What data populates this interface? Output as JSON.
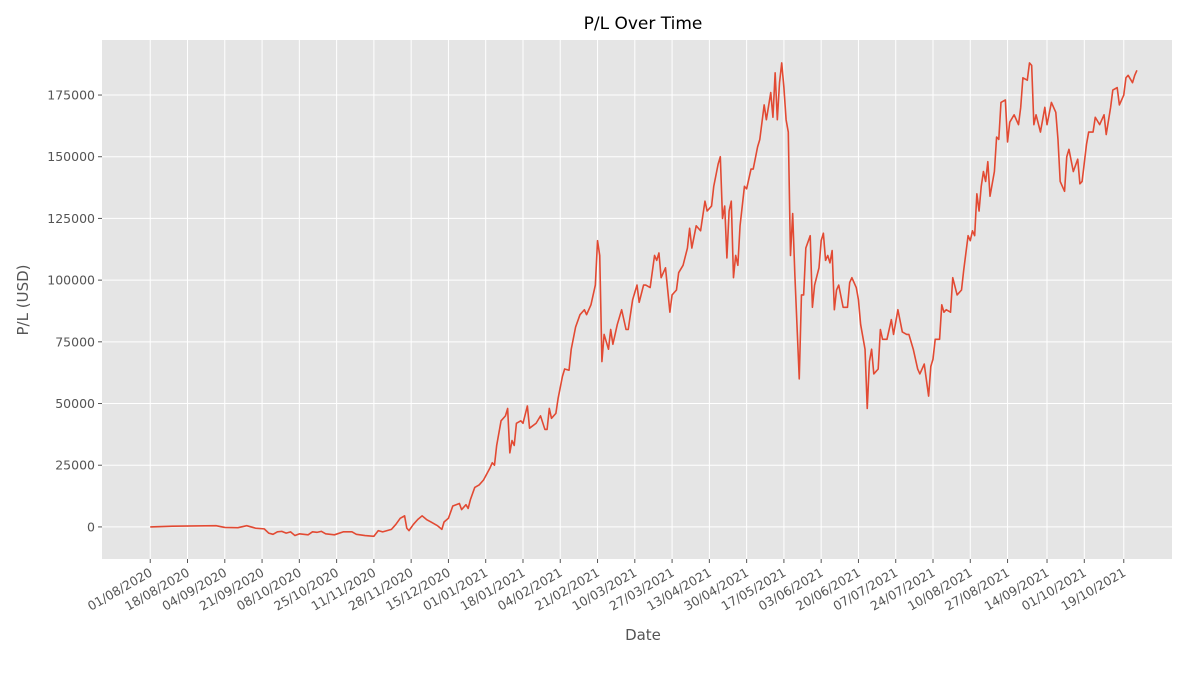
{
  "chart_data": {
    "type": "line",
    "title": "P/L Over Time",
    "x_label": "Date",
    "y_label": "P/L (USD)",
    "color": "#e24a33",
    "grid": true,
    "xlim": [
      "2020-07-10",
      "2021-11-10"
    ],
    "ylim": [
      -13000,
      197300
    ],
    "yticks": [
      0,
      25000,
      50000,
      75000,
      100000,
      125000,
      150000,
      175000
    ],
    "xticks": [
      {
        "value": "2020-08-01",
        "label": "01/08/2020"
      },
      {
        "value": "2020-08-18",
        "label": "18/08/2020"
      },
      {
        "value": "2020-09-04",
        "label": "04/09/2020"
      },
      {
        "value": "2020-09-21",
        "label": "21/09/2020"
      },
      {
        "value": "2020-10-08",
        "label": "08/10/2020"
      },
      {
        "value": "2020-10-25",
        "label": "25/10/2020"
      },
      {
        "value": "2020-11-11",
        "label": "11/11/2020"
      },
      {
        "value": "2020-11-28",
        "label": "28/11/2020"
      },
      {
        "value": "2020-12-15",
        "label": "15/12/2020"
      },
      {
        "value": "2021-01-01",
        "label": "01/01/2021"
      },
      {
        "value": "2021-01-18",
        "label": "18/01/2021"
      },
      {
        "value": "2021-02-04",
        "label": "04/02/2021"
      },
      {
        "value": "2021-02-21",
        "label": "21/02/2021"
      },
      {
        "value": "2021-03-10",
        "label": "10/03/2021"
      },
      {
        "value": "2021-03-27",
        "label": "27/03/2021"
      },
      {
        "value": "2021-04-13",
        "label": "13/04/2021"
      },
      {
        "value": "2021-04-30",
        "label": "30/04/2021"
      },
      {
        "value": "2021-05-17",
        "label": "17/05/2021"
      },
      {
        "value": "2021-06-03",
        "label": "03/06/2021"
      },
      {
        "value": "2021-06-20",
        "label": "20/06/2021"
      },
      {
        "value": "2021-07-07",
        "label": "07/07/2021"
      },
      {
        "value": "2021-07-24",
        "label": "24/07/2021"
      },
      {
        "value": "2021-08-10",
        "label": "10/08/2021"
      },
      {
        "value": "2021-08-27",
        "label": "27/08/2021"
      },
      {
        "value": "2021-09-14",
        "label": "14/09/2021"
      },
      {
        "value": "2021-10-01",
        "label": "01/10/2021"
      },
      {
        "value": "2021-10-19",
        "label": "19/10/2021"
      }
    ],
    "x": [
      "2020-08-01",
      "2020-08-11",
      "2020-08-21",
      "2020-08-31",
      "2020-09-04",
      "2020-09-10",
      "2020-09-14",
      "2020-09-18",
      "2020-09-22",
      "2020-09-24",
      "2020-09-26",
      "2020-09-28",
      "2020-09-30",
      "2020-10-02",
      "2020-10-04",
      "2020-10-06",
      "2020-10-08",
      "2020-10-10",
      "2020-10-12",
      "2020-10-14",
      "2020-10-16",
      "2020-10-18",
      "2020-10-20",
      "2020-10-24",
      "2020-10-28",
      "2020-11-01",
      "2020-11-03",
      "2020-11-07",
      "2020-11-11",
      "2020-11-13",
      "2020-11-15",
      "2020-11-17",
      "2020-11-19",
      "2020-11-21",
      "2020-11-23",
      "2020-11-25",
      "2020-11-26",
      "2020-11-27",
      "2020-11-29",
      "2020-12-01",
      "2020-12-03",
      "2020-12-05",
      "2020-12-07",
      "2020-12-10",
      "2020-12-12",
      "2020-12-13",
      "2020-12-15",
      "2020-12-17",
      "2020-12-20",
      "2020-12-21",
      "2020-12-23",
      "2020-12-24",
      "2020-12-25",
      "2020-12-27",
      "2020-12-29",
      "2020-12-31",
      "2021-01-03",
      "2021-01-04",
      "2021-01-05",
      "2021-01-06",
      "2021-01-08",
      "2021-01-10",
      "2021-01-11",
      "2021-01-12",
      "2021-01-13",
      "2021-01-14",
      "2021-01-15",
      "2021-01-17",
      "2021-01-18",
      "2021-01-20",
      "2021-01-21",
      "2021-01-24",
      "2021-01-26",
      "2021-01-28",
      "2021-01-29",
      "2021-01-30",
      "2021-01-31",
      "2021-02-02",
      "2021-02-03",
      "2021-02-05",
      "2021-02-06",
      "2021-02-08",
      "2021-02-09",
      "2021-02-11",
      "2021-02-13",
      "2021-02-15",
      "2021-02-16",
      "2021-02-18",
      "2021-02-20",
      "2021-02-21",
      "2021-02-22",
      "2021-02-23",
      "2021-02-24",
      "2021-02-26",
      "2021-02-27",
      "2021-02-28",
      "2021-03-02",
      "2021-03-04",
      "2021-03-06",
      "2021-03-07",
      "2021-03-09",
      "2021-03-11",
      "2021-03-12",
      "2021-03-14",
      "2021-03-15",
      "2021-03-17",
      "2021-03-19",
      "2021-03-20",
      "2021-03-21",
      "2021-03-22",
      "2021-03-24",
      "2021-03-25",
      "2021-03-26",
      "2021-03-27",
      "2021-03-29",
      "2021-03-30",
      "2021-04-01",
      "2021-04-03",
      "2021-04-04",
      "2021-04-05",
      "2021-04-07",
      "2021-04-09",
      "2021-04-11",
      "2021-04-12",
      "2021-04-14",
      "2021-04-15",
      "2021-04-17",
      "2021-04-18",
      "2021-04-19",
      "2021-04-20",
      "2021-04-21",
      "2021-04-22",
      "2021-04-23",
      "2021-04-24",
      "2021-04-25",
      "2021-04-26",
      "2021-04-27",
      "2021-04-29",
      "2021-04-30",
      "2021-05-02",
      "2021-05-03",
      "2021-05-05",
      "2021-05-06",
      "2021-05-08",
      "2021-05-09",
      "2021-05-11",
      "2021-05-12",
      "2021-05-13",
      "2021-05-14",
      "2021-05-15",
      "2021-05-16",
      "2021-05-17",
      "2021-05-18",
      "2021-05-19",
      "2021-05-20",
      "2021-05-21",
      "2021-05-22",
      "2021-05-24",
      "2021-05-25",
      "2021-05-26",
      "2021-05-27",
      "2021-05-29",
      "2021-05-30",
      "2021-05-31",
      "2021-06-02",
      "2021-06-03",
      "2021-06-04",
      "2021-06-05",
      "2021-06-06",
      "2021-06-07",
      "2021-06-08",
      "2021-06-09",
      "2021-06-10",
      "2021-06-11",
      "2021-06-13",
      "2021-06-15",
      "2021-06-16",
      "2021-06-17",
      "2021-06-19",
      "2021-06-20",
      "2021-06-21",
      "2021-06-23",
      "2021-06-24",
      "2021-06-25",
      "2021-06-26",
      "2021-06-27",
      "2021-06-29",
      "2021-06-30",
      "2021-07-01",
      "2021-07-03",
      "2021-07-05",
      "2021-07-06",
      "2021-07-08",
      "2021-07-10",
      "2021-07-12",
      "2021-07-13",
      "2021-07-15",
      "2021-07-16",
      "2021-07-17",
      "2021-07-18",
      "2021-07-20",
      "2021-07-22",
      "2021-07-23",
      "2021-07-24",
      "2021-07-25",
      "2021-07-27",
      "2021-07-28",
      "2021-07-29",
      "2021-07-30",
      "2021-08-01",
      "2021-08-02",
      "2021-08-04",
      "2021-08-06",
      "2021-08-07",
      "2021-08-09",
      "2021-08-10",
      "2021-08-11",
      "2021-08-12",
      "2021-08-13",
      "2021-08-14",
      "2021-08-15",
      "2021-08-16",
      "2021-08-17",
      "2021-08-18",
      "2021-08-19",
      "2021-08-21",
      "2021-08-22",
      "2021-08-23",
      "2021-08-24",
      "2021-08-26",
      "2021-08-27",
      "2021-08-28",
      "2021-08-30",
      "2021-09-01",
      "2021-09-02",
      "2021-09-03",
      "2021-09-05",
      "2021-09-06",
      "2021-09-07",
      "2021-09-08",
      "2021-09-09",
      "2021-09-11",
      "2021-09-12",
      "2021-09-13",
      "2021-09-14",
      "2021-09-16",
      "2021-09-18",
      "2021-09-19",
      "2021-09-20",
      "2021-09-22",
      "2021-09-23",
      "2021-09-24",
      "2021-09-26",
      "2021-09-28",
      "2021-09-29",
      "2021-09-30",
      "2021-10-02",
      "2021-10-03",
      "2021-10-05",
      "2021-10-06",
      "2021-10-08",
      "2021-10-10",
      "2021-10-11",
      "2021-10-13",
      "2021-10-14",
      "2021-10-16",
      "2021-10-17",
      "2021-10-19",
      "2021-10-20",
      "2021-10-21",
      "2021-10-23",
      "2021-10-24",
      "2021-10-25"
    ],
    "values": [
      0,
      300,
      400,
      500,
      -200,
      -300,
      500,
      -500,
      -800,
      -2500,
      -3000,
      -2000,
      -1800,
      -2500,
      -2000,
      -3500,
      -2800,
      -3000,
      -3200,
      -2000,
      -2200,
      -1800,
      -2800,
      -3200,
      -2000,
      -2000,
      -3000,
      -3500,
      -3800,
      -1500,
      -2000,
      -1500,
      -1000,
      1000,
      3500,
      4500,
      -500,
      -1500,
      1000,
      3000,
      4500,
      3000,
      2000,
      500,
      -1000,
      2000,
      3500,
      8500,
      9500,
      7000,
      9000,
      7500,
      11000,
      16000,
      17000,
      19000,
      24000,
      26000,
      25000,
      33000,
      43000,
      45000,
      48000,
      30000,
      35000,
      33000,
      42000,
      43000,
      42000,
      49000,
      40000,
      42000,
      45000,
      39500,
      39500,
      48000,
      44000,
      46000,
      52000,
      61000,
      64000,
      63500,
      72000,
      81000,
      86000,
      88000,
      86000,
      90000,
      98000,
      116000,
      110000,
      67000,
      78000,
      72000,
      80000,
      74000,
      82000,
      88000,
      80000,
      80000,
      92000,
      98000,
      91000,
      98000,
      98000,
      97000,
      110000,
      108000,
      111000,
      101000,
      105000,
      96000,
      87000,
      94000,
      96000,
      103000,
      106000,
      113000,
      121000,
      113000,
      122000,
      120000,
      132000,
      128000,
      130000,
      138000,
      147000,
      150000,
      125000,
      130000,
      109000,
      128000,
      132000,
      101000,
      110000,
      106000,
      122000,
      138000,
      137000,
      145000,
      145000,
      154000,
      157000,
      171000,
      165000,
      176000,
      166000,
      184000,
      165000,
      180000,
      188000,
      178000,
      165000,
      160000,
      110000,
      127000,
      102000,
      60000,
      94000,
      94000,
      113000,
      118000,
      89000,
      98000,
      105000,
      116000,
      119000,
      108000,
      110000,
      107000,
      112000,
      88000,
      96000,
      98000,
      89000,
      89000,
      99000,
      101000,
      97000,
      92000,
      82000,
      72000,
      48000,
      67000,
      72000,
      62000,
      64000,
      80000,
      76000,
      76000,
      84000,
      78000,
      88000,
      79000,
      78000,
      78000,
      72000,
      68000,
      64000,
      62000,
      66000,
      53000,
      65000,
      68000,
      76000,
      76000,
      90000,
      87000,
      88000,
      87000,
      101000,
      94000,
      96000,
      104000,
      118000,
      116000,
      120000,
      118000,
      135000,
      128000,
      138000,
      144000,
      140000,
      148000,
      134000,
      144000,
      158000,
      157000,
      172000,
      173000,
      156000,
      164000,
      167000,
      163000,
      170000,
      182000,
      181000,
      188000,
      187000,
      163000,
      167000,
      160000,
      165000,
      170000,
      163000,
      172000,
      168000,
      157000,
      140000,
      136000,
      150000,
      153000,
      144000,
      149000,
      139000,
      140000,
      155000,
      160000,
      160000,
      166000,
      163000,
      167000,
      159000,
      170000,
      177000,
      178000,
      171000,
      175000,
      182000,
      183000,
      180000,
      183000,
      185000
    ]
  }
}
